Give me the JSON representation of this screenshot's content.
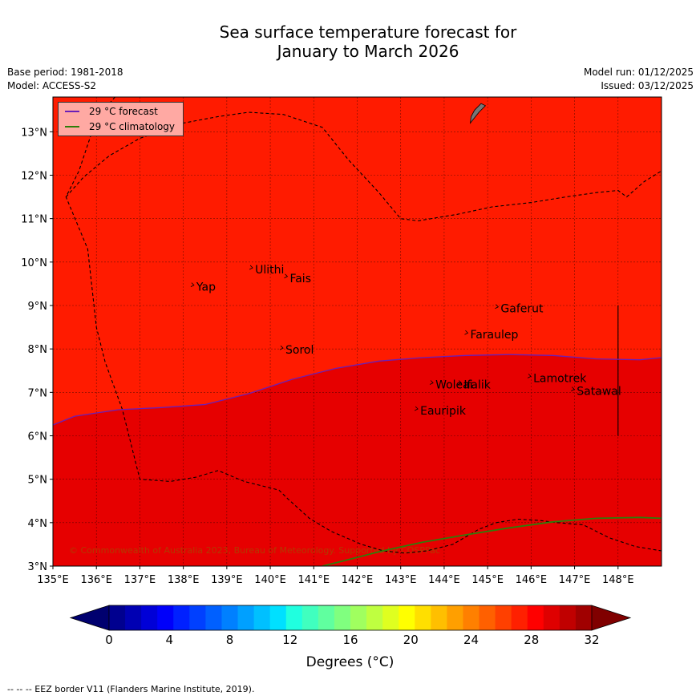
{
  "title": {
    "line1": "Sea surface temperature forecast for",
    "line2": "January to March 2026"
  },
  "meta": {
    "base_period": "Base period: 1981-2018",
    "model": "Model: ACCESS-S2",
    "model_run": "Model run: 01/12/2025",
    "issued": "Issued: 03/12/2025"
  },
  "map": {
    "lon_range": [
      135,
      149
    ],
    "lat_range": [
      3,
      13.8
    ],
    "lon_ticks": [
      "135°E",
      "136°E",
      "137°E",
      "138°E",
      "139°E",
      "140°E",
      "141°E",
      "142°E",
      "143°E",
      "144°E",
      "145°E",
      "146°E",
      "147°E",
      "148°E"
    ],
    "lat_ticks": [
      "3°N",
      "4°N",
      "5°N",
      "6°N",
      "7°N",
      "8°N",
      "9°N",
      "10°N",
      "11°N",
      "12°N",
      "13°N"
    ],
    "fill_warm": "#ff1b00",
    "fill_warmer": "#e60000",
    "forecast_color": "#6a1fb8",
    "climatology_color": "#2e7d0a",
    "copyright": "© Commonwealth of Australia 2023, Bureau of Meteorology. Supported by COSPPac",
    "places": [
      {
        "name": "Yap",
        "lon": 138.3,
        "lat": 9.45
      },
      {
        "name": "Ulithi",
        "lon": 139.65,
        "lat": 9.85
      },
      {
        "name": "Fais",
        "lon": 140.45,
        "lat": 9.65
      },
      {
        "name": "Sorol",
        "lon": 140.35,
        "lat": 8.0
      },
      {
        "name": "Gaferut",
        "lon": 145.3,
        "lat": 8.95
      },
      {
        "name": "Faraulep",
        "lon": 144.6,
        "lat": 8.35
      },
      {
        "name": "Lamotrek",
        "lon": 146.05,
        "lat": 7.35
      },
      {
        "name": "Satawal",
        "lon": 147.05,
        "lat": 7.05
      },
      {
        "name": "Woleai",
        "lon": 143.8,
        "lat": 7.2
      },
      {
        "name": "Ifalik",
        "lon": 144.45,
        "lat": 7.2
      },
      {
        "name": "Eauripik",
        "lon": 143.45,
        "lat": 6.6
      }
    ],
    "forecast_isotherm": [
      [
        135,
        6.25
      ],
      [
        135.5,
        6.45
      ],
      [
        136.5,
        6.6
      ],
      [
        137.5,
        6.65
      ],
      [
        138.5,
        6.72
      ],
      [
        139.5,
        6.97
      ],
      [
        140.5,
        7.3
      ],
      [
        141.5,
        7.55
      ],
      [
        142.5,
        7.72
      ],
      [
        143.5,
        7.8
      ],
      [
        144.5,
        7.85
      ],
      [
        145.5,
        7.87
      ],
      [
        146.5,
        7.85
      ],
      [
        147.5,
        7.77
      ],
      [
        148.5,
        7.75
      ],
      [
        149,
        7.8
      ]
    ],
    "climatology_isotherm": [
      [
        141.2,
        3
      ],
      [
        141.8,
        3.15
      ],
      [
        142.5,
        3.33
      ],
      [
        143.5,
        3.55
      ],
      [
        144.5,
        3.72
      ],
      [
        145.5,
        3.88
      ],
      [
        146.5,
        4.02
      ],
      [
        147.5,
        4.1
      ],
      [
        148.5,
        4.12
      ],
      [
        149,
        4.1
      ]
    ],
    "eez_main": [
      [
        136.6,
        14
      ],
      [
        136.0,
        13.3
      ],
      [
        135.6,
        12.1
      ],
      [
        135.3,
        11.5
      ],
      [
        135.8,
        10.3
      ],
      [
        136.0,
        8.5
      ],
      [
        136.2,
        7.7
      ],
      [
        136.6,
        6.6
      ],
      [
        137.0,
        5.0
      ],
      [
        137.7,
        4.95
      ],
      [
        138.3,
        5.05
      ],
      [
        138.8,
        5.2
      ],
      [
        139.4,
        4.95
      ],
      [
        140.2,
        4.75
      ],
      [
        140.4,
        4.55
      ],
      [
        140.9,
        4.1
      ],
      [
        141.4,
        3.8
      ],
      [
        142.1,
        3.5
      ],
      [
        142.6,
        3.35
      ],
      [
        143.1,
        3.3
      ],
      [
        143.6,
        3.35
      ],
      [
        144.2,
        3.5
      ],
      [
        144.8,
        3.85
      ],
      [
        145.2,
        4.0
      ],
      [
        145.7,
        4.08
      ],
      [
        146.2,
        4.05
      ],
      [
        146.6,
        4.0
      ],
      [
        147.2,
        3.95
      ],
      [
        147.8,
        3.65
      ],
      [
        148.4,
        3.45
      ],
      [
        149,
        3.35
      ]
    ],
    "eez_north": [
      [
        135.3,
        11.5
      ],
      [
        135.7,
        11.95
      ],
      [
        136.3,
        12.45
      ],
      [
        137.0,
        12.85
      ],
      [
        138.0,
        13.2
      ],
      [
        138.8,
        13.35
      ],
      [
        139.5,
        13.45
      ],
      [
        140.3,
        13.4
      ],
      [
        140.9,
        13.2
      ],
      [
        141.2,
        13.1
      ],
      [
        141.8,
        12.35
      ],
      [
        142.5,
        11.6
      ],
      [
        143.0,
        11.0
      ],
      [
        143.4,
        10.95
      ],
      [
        144.3,
        11.1
      ],
      [
        145.1,
        11.27
      ],
      [
        146.0,
        11.37
      ],
      [
        146.8,
        11.5
      ],
      [
        147.5,
        11.6
      ],
      [
        148.0,
        11.65
      ],
      [
        148.2,
        11.5
      ],
      [
        148.6,
        11.85
      ],
      [
        149,
        12.1
      ]
    ],
    "eez_vertical": [
      [
        148.0,
        9.0
      ],
      [
        148.0,
        6.0
      ]
    ],
    "guam": [
      [
        144.6,
        13.2
      ],
      [
        144.8,
        13.45
      ],
      [
        144.95,
        13.6
      ],
      [
        144.85,
        13.65
      ],
      [
        144.7,
        13.5
      ],
      [
        144.62,
        13.35
      ]
    ]
  },
  "legend": {
    "forecast": "29 °C  forecast",
    "climatology": "29 °C  climatology"
  },
  "colorbar": {
    "colors": [
      "#00008f",
      "#0000b3",
      "#0000d7",
      "#0000fa",
      "#0020ff",
      "#0040ff",
      "#0060ff",
      "#0080ff",
      "#00a0ff",
      "#00c0ff",
      "#00e0ff",
      "#20ffdf",
      "#40ffbf",
      "#60ff9f",
      "#80ff7f",
      "#a0ff5f",
      "#bfff40",
      "#dfff20",
      "#ffff00",
      "#ffdf00",
      "#ffbf00",
      "#ff9f00",
      "#ff8000",
      "#ff6000",
      "#ff4000",
      "#ff2000",
      "#ff0000",
      "#df0000",
      "#c00000",
      "#a00000"
    ],
    "under_color": "#00006f",
    "over_color": "#800000",
    "tick_values": [
      0,
      4,
      8,
      12,
      16,
      20,
      24,
      28,
      32
    ],
    "tick_labels": [
      "0",
      "4",
      "8",
      "12",
      "16",
      "20",
      "24",
      "28",
      "32"
    ],
    "label": "Degrees (°C)"
  },
  "footer": "--  --  -- EEZ border V11 (Flanders Marine Institute, 2019)."
}
